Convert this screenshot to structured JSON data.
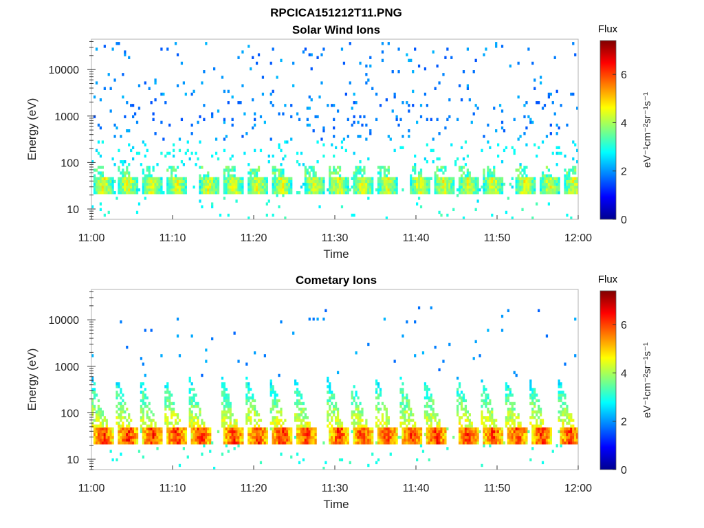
{
  "figure": {
    "filename": "RPCICA151212T11.PNG"
  },
  "chart_data": [
    {
      "type": "heatmap",
      "title": "Solar Wind Ions",
      "xlabel": "Time",
      "ylabel": "Energy (eV)",
      "x_ticks": [
        "11:00",
        "11:10",
        "11:20",
        "11:30",
        "11:40",
        "11:50",
        "12:00"
      ],
      "xlim": [
        "11:00",
        "12:00"
      ],
      "y_scale": "log",
      "y_ticks": [
        10,
        100,
        1000,
        10000
      ],
      "y_tick_labels": [
        "10",
        "100",
        "1000",
        "10000"
      ],
      "ylim": [
        6,
        45000
      ],
      "colorbar": {
        "label": "Flux",
        "unit": "eV⁻¹cm⁻²sr⁻¹s⁻¹",
        "range": [
          0,
          7.4
        ],
        "ticks": [
          "0",
          "2",
          "4",
          "6"
        ],
        "colormap": "jet"
      },
      "burst_times_min": [
        1.5,
        4.5,
        7.5,
        10.5,
        14.5,
        17.5,
        20.5,
        23.5,
        27.5,
        30.5,
        33.5,
        36.5,
        40.5,
        43.5,
        46.5,
        49.5,
        53.5,
        56.5,
        59.5
      ],
      "core_energy_ev": [
        25,
        45
      ],
      "core_flux": 4.5,
      "sparse_flux_range": [
        1.5,
        2.5
      ]
    },
    {
      "type": "heatmap",
      "title": "Cometary Ions",
      "xlabel": "Time",
      "ylabel": "Energy (eV)",
      "x_ticks": [
        "11:00",
        "11:10",
        "11:20",
        "11:30",
        "11:40",
        "11:50",
        "12:00"
      ],
      "xlim": [
        "11:00",
        "12:00"
      ],
      "y_scale": "log",
      "y_ticks": [
        10,
        100,
        1000,
        10000
      ],
      "y_tick_labels": [
        "10",
        "100",
        "1000",
        "10000"
      ],
      "ylim": [
        6,
        45000
      ],
      "colorbar": {
        "label": "Flux",
        "unit": "eV⁻¹cm⁻²sr⁻¹s⁻¹",
        "range": [
          0,
          7.4
        ],
        "ticks": [
          "0",
          "2",
          "4",
          "6"
        ],
        "colormap": "jet"
      },
      "burst_times_min": [
        1.5,
        4.5,
        7.5,
        10.5,
        13.5,
        17.5,
        20.5,
        23.5,
        26.5,
        30.5,
        33.5,
        36.5,
        39.5,
        42.5,
        46.5,
        49.5,
        52.5,
        55.5,
        59.0
      ],
      "core_energy_ev": [
        25,
        45
      ],
      "core_flux": 6.0,
      "plume_max_energy_ev": 600
    }
  ]
}
